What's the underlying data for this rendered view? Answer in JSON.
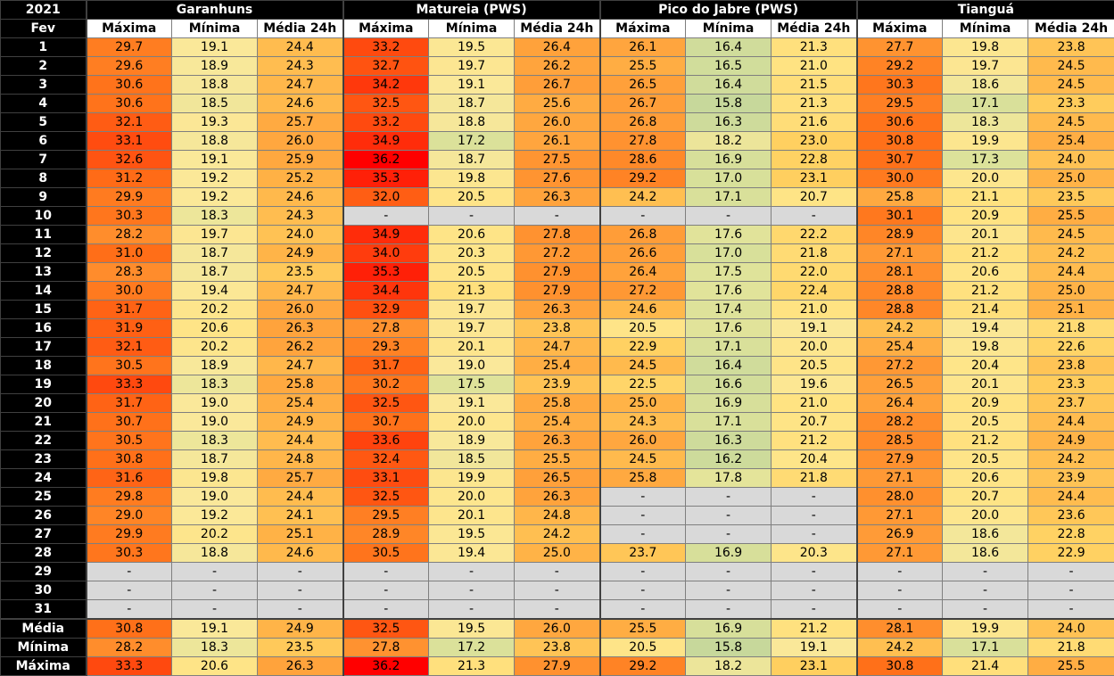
{
  "year": "2021",
  "month_label": "Fev",
  "stations": [
    "Garanhuns",
    "Matureia (PWS)",
    "Pico do Jabre (PWS)",
    "Tianguá"
  ],
  "sub_headers": [
    "Máxima",
    "Mínima",
    "Média 24h"
  ],
  "summary_labels": [
    "Média",
    "Mínima",
    "Máxima"
  ],
  "missing_symbol": "-",
  "color_scale": {
    "missing": "#d9d9d9",
    "stops": [
      [
        15.5,
        "#c3d69b"
      ],
      [
        17.5,
        "#dfe39a"
      ],
      [
        19.0,
        "#fae89a"
      ],
      [
        21.0,
        "#ffe382"
      ],
      [
        23.0,
        "#ffd060"
      ],
      [
        25.0,
        "#ffb347"
      ],
      [
        27.0,
        "#ff9a36"
      ],
      [
        29.0,
        "#ff8526"
      ],
      [
        31.0,
        "#ff6e18"
      ],
      [
        33.0,
        "#ff4e10"
      ],
      [
        35.0,
        "#ff2a0a"
      ],
      [
        36.2,
        "#ff0000"
      ]
    ]
  },
  "rows": [
    {
      "day": "1",
      "values": [
        "29.7",
        "19.1",
        "24.4",
        "33.2",
        "19.5",
        "26.4",
        "26.1",
        "16.4",
        "21.3",
        "27.7",
        "19.8",
        "23.8"
      ]
    },
    {
      "day": "2",
      "values": [
        "29.6",
        "18.9",
        "24.3",
        "32.7",
        "19.7",
        "26.2",
        "25.5",
        "16.5",
        "21.0",
        "29.2",
        "19.7",
        "24.5"
      ]
    },
    {
      "day": "3",
      "values": [
        "30.6",
        "18.8",
        "24.7",
        "34.2",
        "19.1",
        "26.7",
        "26.5",
        "16.4",
        "21.5",
        "30.3",
        "18.6",
        "24.5"
      ]
    },
    {
      "day": "4",
      "values": [
        "30.6",
        "18.5",
        "24.6",
        "32.5",
        "18.7",
        "25.6",
        "26.7",
        "15.8",
        "21.3",
        "29.5",
        "17.1",
        "23.3"
      ]
    },
    {
      "day": "5",
      "values": [
        "32.1",
        "19.3",
        "25.7",
        "33.2",
        "18.8",
        "26.0",
        "26.8",
        "16.3",
        "21.6",
        "30.6",
        "18.3",
        "24.5"
      ]
    },
    {
      "day": "6",
      "values": [
        "33.1",
        "18.8",
        "26.0",
        "34.9",
        "17.2",
        "26.1",
        "27.8",
        "18.2",
        "23.0",
        "30.8",
        "19.9",
        "25.4"
      ]
    },
    {
      "day": "7",
      "values": [
        "32.6",
        "19.1",
        "25.9",
        "36.2",
        "18.7",
        "27.5",
        "28.6",
        "16.9",
        "22.8",
        "30.7",
        "17.3",
        "24.0"
      ]
    },
    {
      "day": "8",
      "values": [
        "31.2",
        "19.2",
        "25.2",
        "35.3",
        "19.8",
        "27.6",
        "29.2",
        "17.0",
        "23.1",
        "30.0",
        "20.0",
        "25.0"
      ]
    },
    {
      "day": "9",
      "values": [
        "29.9",
        "19.2",
        "24.6",
        "32.0",
        "20.5",
        "26.3",
        "24.2",
        "17.1",
        "20.7",
        "25.8",
        "21.1",
        "23.5"
      ]
    },
    {
      "day": "10",
      "values": [
        "30.3",
        "18.3",
        "24.3",
        "-",
        "-",
        "-",
        "-",
        "-",
        "-",
        "30.1",
        "20.9",
        "25.5"
      ]
    },
    {
      "day": "11",
      "values": [
        "28.2",
        "19.7",
        "24.0",
        "34.9",
        "20.6",
        "27.8",
        "26.8",
        "17.6",
        "22.2",
        "28.9",
        "20.1",
        "24.5"
      ]
    },
    {
      "day": "12",
      "values": [
        "31.0",
        "18.7",
        "24.9",
        "34.0",
        "20.3",
        "27.2",
        "26.6",
        "17.0",
        "21.8",
        "27.1",
        "21.2",
        "24.2"
      ]
    },
    {
      "day": "13",
      "values": [
        "28.3",
        "18.7",
        "23.5",
        "35.3",
        "20.5",
        "27.9",
        "26.4",
        "17.5",
        "22.0",
        "28.1",
        "20.6",
        "24.4"
      ]
    },
    {
      "day": "14",
      "values": [
        "30.0",
        "19.4",
        "24.7",
        "34.4",
        "21.3",
        "27.9",
        "27.2",
        "17.6",
        "22.4",
        "28.8",
        "21.2",
        "25.0"
      ]
    },
    {
      "day": "15",
      "values": [
        "31.7",
        "20.2",
        "26.0",
        "32.9",
        "19.7",
        "26.3",
        "24.6",
        "17.4",
        "21.0",
        "28.8",
        "21.4",
        "25.1"
      ]
    },
    {
      "day": "16",
      "values": [
        "31.9",
        "20.6",
        "26.3",
        "27.8",
        "19.7",
        "23.8",
        "20.5",
        "17.6",
        "19.1",
        "24.2",
        "19.4",
        "21.8"
      ]
    },
    {
      "day": "17",
      "values": [
        "32.1",
        "20.2",
        "26.2",
        "29.3",
        "20.1",
        "24.7",
        "22.9",
        "17.1",
        "20.0",
        "25.4",
        "19.8",
        "22.6"
      ]
    },
    {
      "day": "18",
      "values": [
        "30.5",
        "18.9",
        "24.7",
        "31.7",
        "19.0",
        "25.4",
        "24.5",
        "16.4",
        "20.5",
        "27.2",
        "20.4",
        "23.8"
      ]
    },
    {
      "day": "19",
      "values": [
        "33.3",
        "18.3",
        "25.8",
        "30.2",
        "17.5",
        "23.9",
        "22.5",
        "16.6",
        "19.6",
        "26.5",
        "20.1",
        "23.3"
      ]
    },
    {
      "day": "20",
      "values": [
        "31.7",
        "19.0",
        "25.4",
        "32.5",
        "19.1",
        "25.8",
        "25.0",
        "16.9",
        "21.0",
        "26.4",
        "20.9",
        "23.7"
      ]
    },
    {
      "day": "21",
      "values": [
        "30.7",
        "19.0",
        "24.9",
        "30.7",
        "20.0",
        "25.4",
        "24.3",
        "17.1",
        "20.7",
        "28.2",
        "20.5",
        "24.4"
      ]
    },
    {
      "day": "22",
      "values": [
        "30.5",
        "18.3",
        "24.4",
        "33.6",
        "18.9",
        "26.3",
        "26.0",
        "16.3",
        "21.2",
        "28.5",
        "21.2",
        "24.9"
      ]
    },
    {
      "day": "23",
      "values": [
        "30.8",
        "18.7",
        "24.8",
        "32.4",
        "18.5",
        "25.5",
        "24.5",
        "16.2",
        "20.4",
        "27.9",
        "20.5",
        "24.2"
      ]
    },
    {
      "day": "24",
      "values": [
        "31.6",
        "19.8",
        "25.7",
        "33.1",
        "19.9",
        "26.5",
        "25.8",
        "17.8",
        "21.8",
        "27.1",
        "20.6",
        "23.9"
      ]
    },
    {
      "day": "25",
      "values": [
        "29.8",
        "19.0",
        "24.4",
        "32.5",
        "20.0",
        "26.3",
        "-",
        "-",
        "-",
        "28.0",
        "20.7",
        "24.4"
      ]
    },
    {
      "day": "26",
      "values": [
        "29.0",
        "19.2",
        "24.1",
        "29.5",
        "20.1",
        "24.8",
        "-",
        "-",
        "-",
        "27.1",
        "20.0",
        "23.6"
      ]
    },
    {
      "day": "27",
      "values": [
        "29.9",
        "20.2",
        "25.1",
        "28.9",
        "19.5",
        "24.2",
        "-",
        "-",
        "-",
        "26.9",
        "18.6",
        "22.8"
      ]
    },
    {
      "day": "28",
      "values": [
        "30.3",
        "18.8",
        "24.6",
        "30.5",
        "19.4",
        "25.0",
        "23.7",
        "16.9",
        "20.3",
        "27.1",
        "18.6",
        "22.9"
      ]
    },
    {
      "day": "29",
      "values": [
        "-",
        "-",
        "-",
        "-",
        "-",
        "-",
        "-",
        "-",
        "-",
        "-",
        "-",
        "-"
      ]
    },
    {
      "day": "30",
      "values": [
        "-",
        "-",
        "-",
        "-",
        "-",
        "-",
        "-",
        "-",
        "-",
        "-",
        "-",
        "-"
      ]
    },
    {
      "day": "31",
      "values": [
        "-",
        "-",
        "-",
        "-",
        "-",
        "-",
        "-",
        "-",
        "-",
        "-",
        "-",
        "-"
      ]
    }
  ],
  "summary": [
    {
      "label": "Média",
      "values": [
        "30.8",
        "19.1",
        "24.9",
        "32.5",
        "19.5",
        "26.0",
        "25.5",
        "16.9",
        "21.2",
        "28.1",
        "19.9",
        "24.0"
      ]
    },
    {
      "label": "Mínima",
      "values": [
        "28.2",
        "18.3",
        "23.5",
        "27.8",
        "17.2",
        "23.8",
        "20.5",
        "15.8",
        "19.1",
        "24.2",
        "17.1",
        "21.8"
      ]
    },
    {
      "label": "Máxima",
      "values": [
        "33.3",
        "20.6",
        "26.3",
        "36.2",
        "21.3",
        "27.9",
        "29.2",
        "18.2",
        "23.1",
        "30.8",
        "21.4",
        "25.5"
      ]
    }
  ]
}
